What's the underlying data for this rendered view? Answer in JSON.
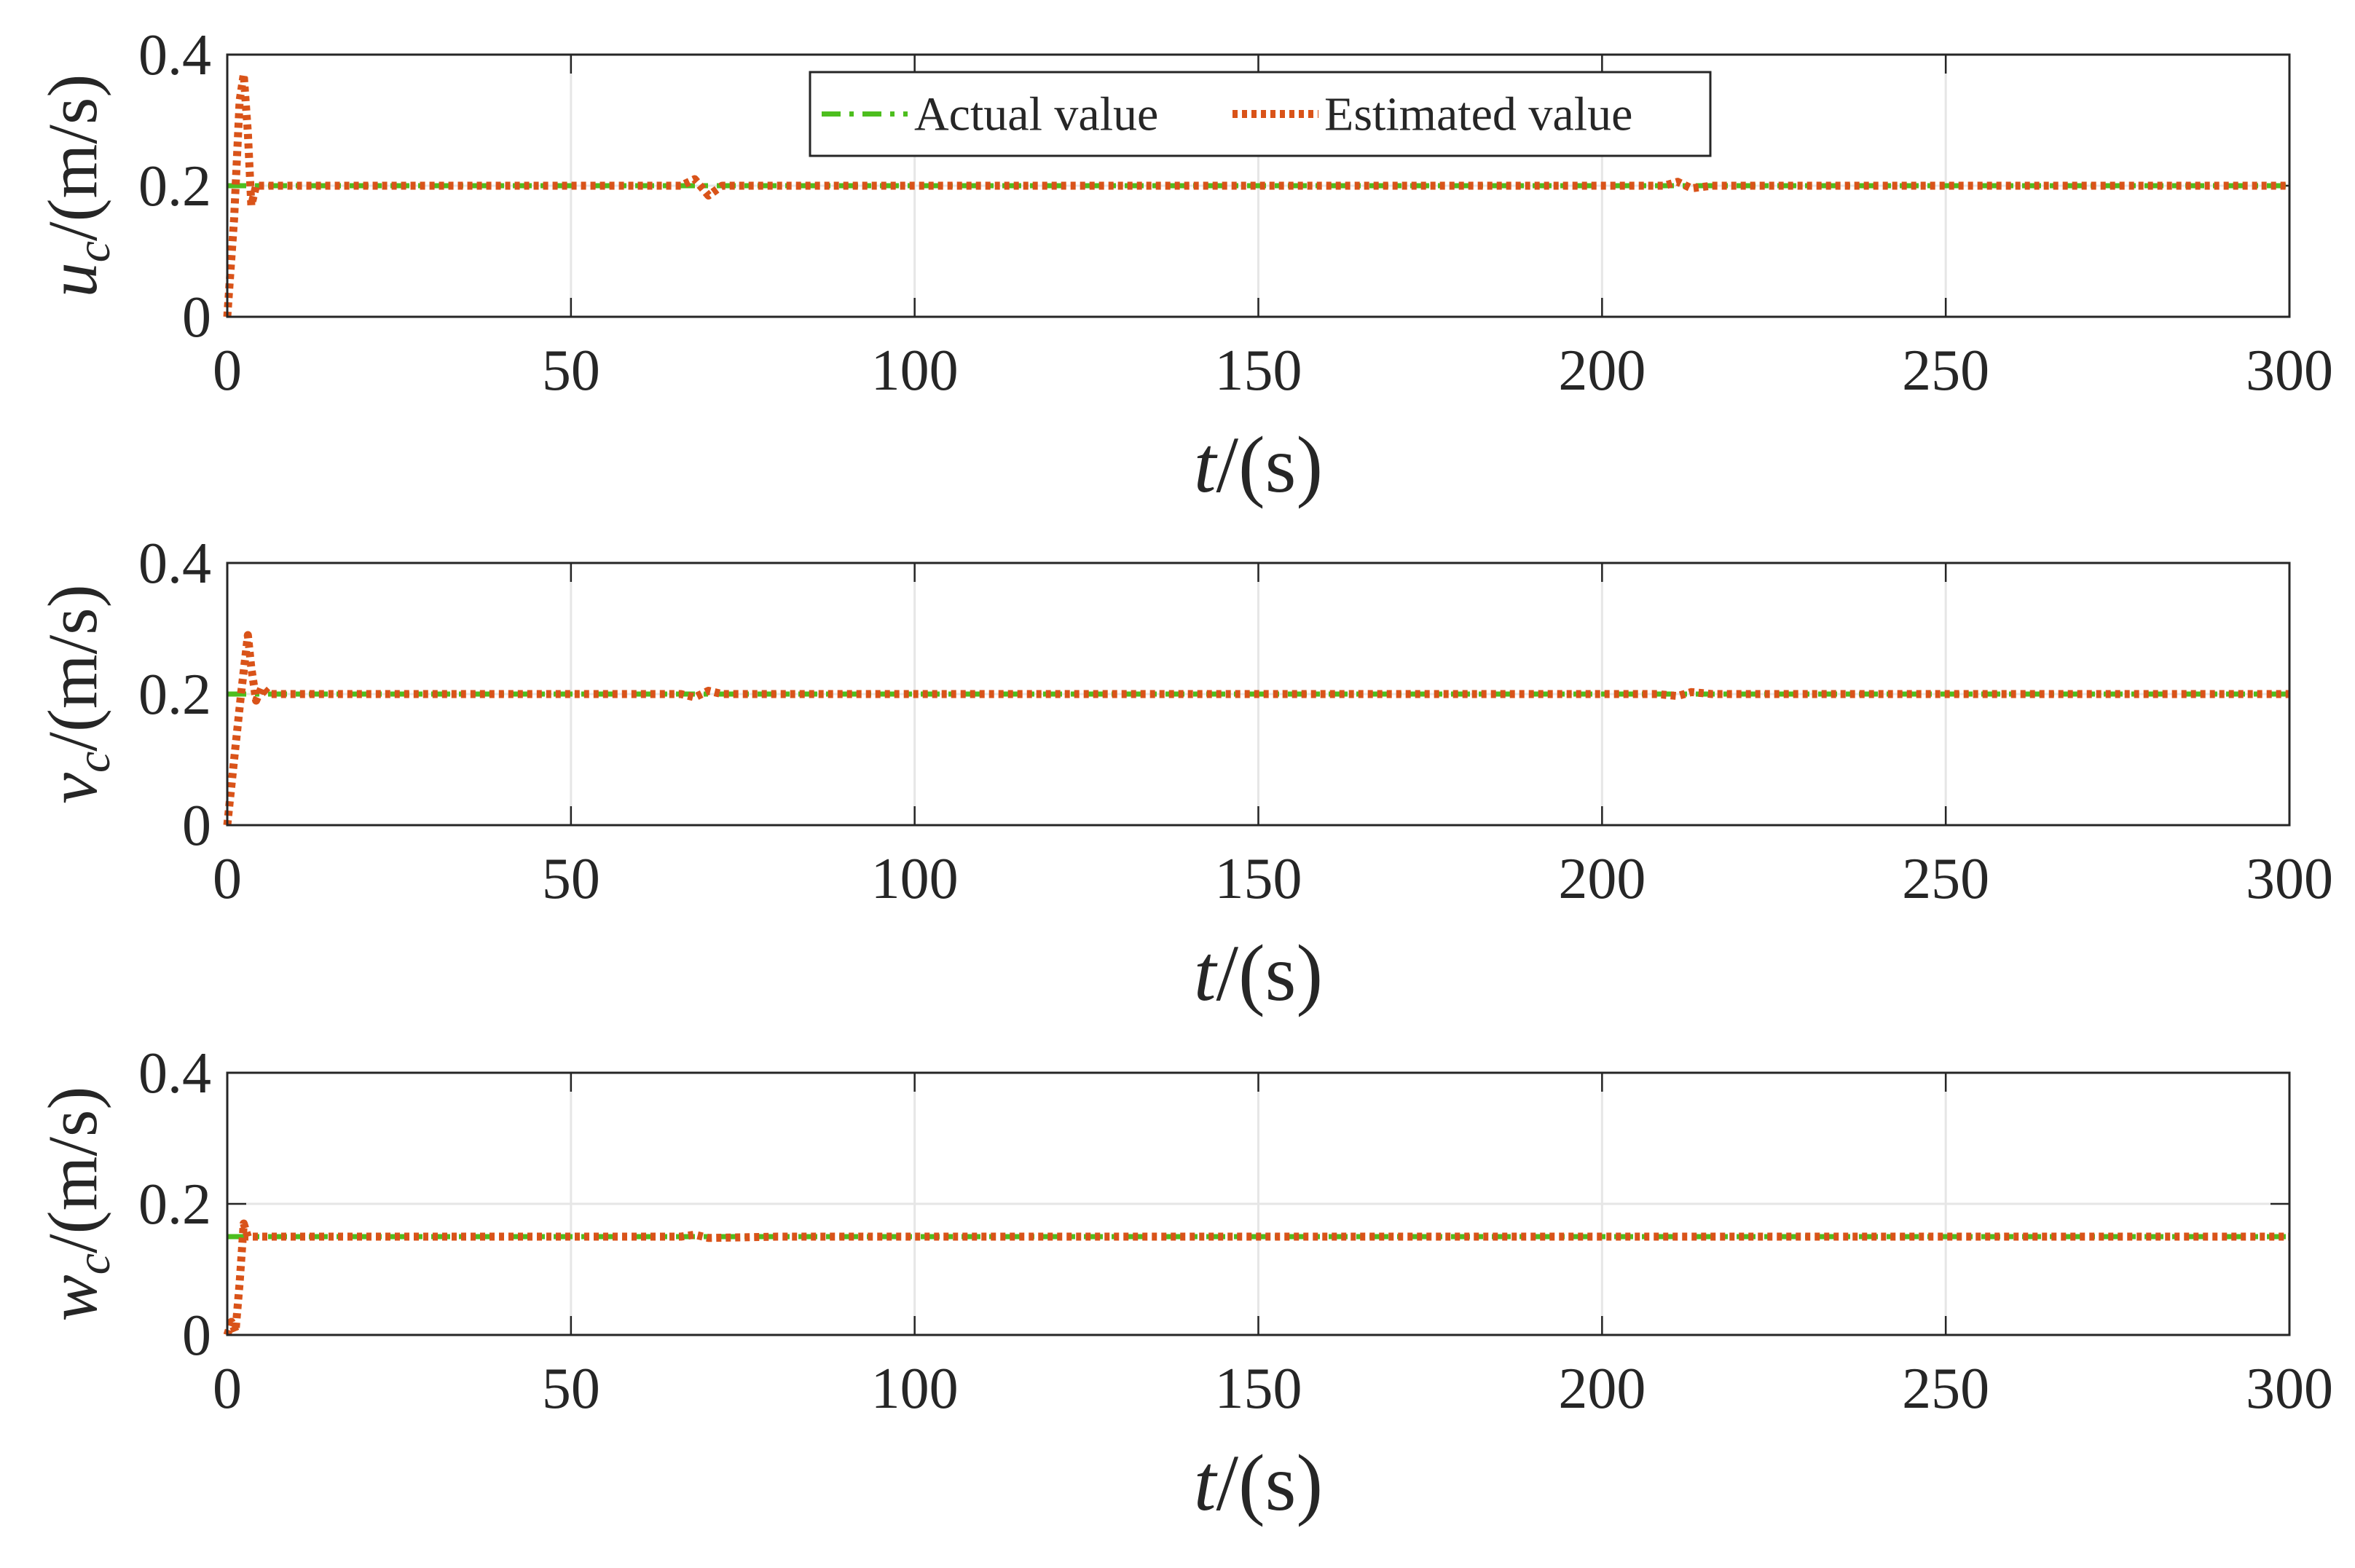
{
  "chart_data": [
    {
      "type": "line",
      "ylabel": {
        "symbol": "u",
        "sub": "c",
        "unit": "/(m/s)"
      },
      "xlabel": {
        "symbol": "t",
        "unit": "/(s)"
      },
      "xlim": [
        0,
        300
      ],
      "ylim": [
        0,
        0.4
      ],
      "xticks": [
        "0",
        "50",
        "100",
        "150",
        "200",
        "250",
        "300"
      ],
      "yticks": [
        "0",
        "0.2",
        "0.4"
      ],
      "grid": true,
      "legend": {
        "placement": "top-center",
        "entries": [
          "Actual value",
          "Estimated value"
        ]
      },
      "series": [
        {
          "name": "Actual value",
          "color": "#4DBE1E",
          "style": "dash-dot",
          "x": [
            0,
            300
          ],
          "y": [
            0.2,
            0.2
          ]
        },
        {
          "name": "Estimated value",
          "color": "#D95319",
          "style": "dotted",
          "x": [
            0,
            1,
            1.8,
            2.4,
            3,
            3.5,
            4.2,
            5,
            6,
            10,
            60,
            66,
            68,
            70,
            72,
            80,
            205,
            209,
            211,
            213,
            216,
            300
          ],
          "y": [
            0,
            0.15,
            0.33,
            0.37,
            0.28,
            0.17,
            0.2,
            0.2,
            0.2,
            0.2,
            0.2,
            0.2,
            0.21,
            0.185,
            0.2,
            0.2,
            0.2,
            0.2,
            0.206,
            0.196,
            0.2,
            0.2
          ]
        }
      ]
    },
    {
      "type": "line",
      "ylabel": {
        "symbol": "v",
        "sub": "c",
        "unit": "/(m/s)"
      },
      "xlabel": {
        "symbol": "t",
        "unit": "/(s)"
      },
      "xlim": [
        0,
        300
      ],
      "ylim": [
        0,
        0.4
      ],
      "xticks": [
        "0",
        "50",
        "100",
        "150",
        "200",
        "250",
        "300"
      ],
      "yticks": [
        "0",
        "0.2",
        "0.4"
      ],
      "grid": true,
      "series": [
        {
          "name": "Actual value",
          "color": "#4DBE1E",
          "style": "dash-dot",
          "x": [
            0,
            300
          ],
          "y": [
            0.2,
            0.2
          ]
        },
        {
          "name": "Estimated value",
          "color": "#D95319",
          "style": "dotted",
          "x": [
            0,
            1,
            2,
            3,
            3.5,
            4.2,
            5,
            6,
            8,
            60,
            66,
            68,
            70,
            72,
            80,
            208,
            211,
            213,
            216,
            300
          ],
          "y": [
            0,
            0.1,
            0.2,
            0.29,
            0.24,
            0.19,
            0.21,
            0.2,
            0.2,
            0.2,
            0.2,
            0.195,
            0.205,
            0.2,
            0.2,
            0.2,
            0.197,
            0.203,
            0.2,
            0.2
          ]
        }
      ]
    },
    {
      "type": "line",
      "ylabel": {
        "symbol": "w",
        "sub": "c",
        "unit": "/(m/s)"
      },
      "xlabel": {
        "symbol": "t",
        "unit": "/(s)"
      },
      "xlim": [
        0,
        300
      ],
      "ylim": [
        0,
        0.4
      ],
      "xticks": [
        "0",
        "50",
        "100",
        "150",
        "200",
        "250",
        "300"
      ],
      "yticks": [
        "0",
        "0.2",
        "0.4"
      ],
      "grid": true,
      "series": [
        {
          "name": "Actual value",
          "color": "#4DBE1E",
          "style": "dash-dot",
          "x": [
            0,
            300
          ],
          "y": [
            0.15,
            0.15
          ]
        },
        {
          "name": "Estimated value",
          "color": "#D95319",
          "style": "dotted",
          "x": [
            0,
            0.6,
            1.2,
            1.8,
            2.4,
            3,
            4,
            6,
            60,
            66,
            68,
            70,
            80,
            300
          ],
          "y": [
            0,
            0.02,
            0.005,
            0.08,
            0.17,
            0.15,
            0.15,
            0.15,
            0.15,
            0.15,
            0.153,
            0.148,
            0.15,
            0.15
          ]
        }
      ]
    }
  ]
}
